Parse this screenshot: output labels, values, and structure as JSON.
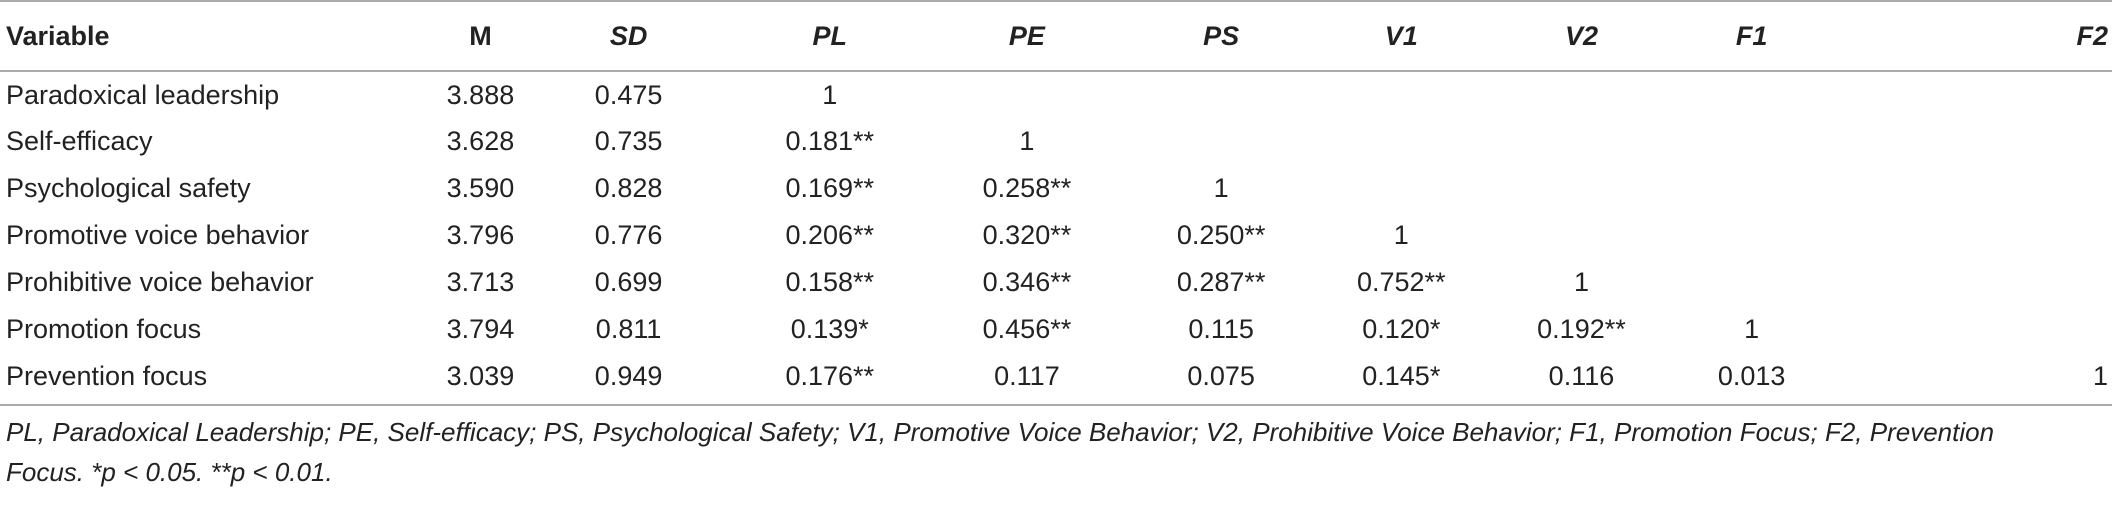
{
  "table": {
    "headers": [
      "Variable",
      "M",
      "SD",
      "PL",
      "PE",
      "PS",
      "V1",
      "V2",
      "F1",
      "F2"
    ],
    "rows": [
      [
        "Paradoxical leadership",
        "3.888",
        "0.475",
        "1",
        "",
        "",
        "",
        "",
        "",
        ""
      ],
      [
        "Self-efficacy",
        "3.628",
        "0.735",
        "0.181**",
        "1",
        "",
        "",
        "",
        "",
        ""
      ],
      [
        "Psychological safety",
        "3.590",
        "0.828",
        "0.169**",
        "0.258**",
        "1",
        "",
        "",
        "",
        ""
      ],
      [
        "Promotive voice behavior",
        "3.796",
        "0.776",
        "0.206**",
        "0.320**",
        "0.250**",
        "1",
        "",
        "",
        ""
      ],
      [
        "Prohibitive voice behavior",
        "3.713",
        "0.699",
        "0.158**",
        "0.346**",
        "0.287**",
        "0.752**",
        "1",
        "",
        ""
      ],
      [
        "Promotion focus",
        "3.794",
        "0.811",
        "0.139*",
        "0.456**",
        "0.115",
        "0.120*",
        "0.192**",
        "1",
        ""
      ],
      [
        "Prevention focus",
        "3.039",
        "0.949",
        "0.176**",
        "0.117",
        "0.075",
        "0.145*",
        "0.116",
        "0.013",
        "1"
      ]
    ]
  },
  "note": {
    "line1": "PL, Paradoxical Leadership; PE, Self-efficacy; PS, Psychological Safety; V1, Promotive Voice Behavior; V2, Prohibitive Voice Behavior; F1, Promotion Focus; F2, Prevention",
    "line2": "Focus. *p < 0.05. **p < 0.01."
  }
}
